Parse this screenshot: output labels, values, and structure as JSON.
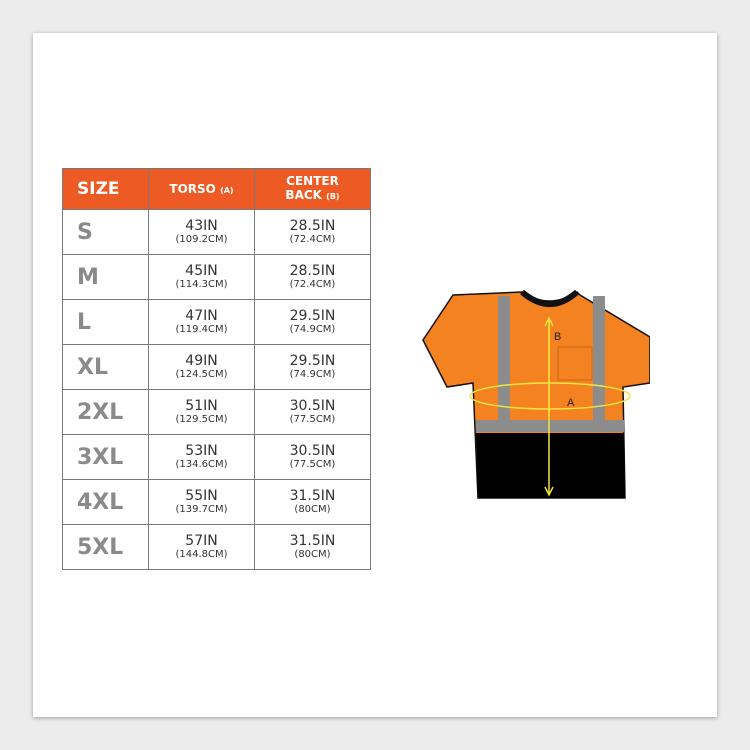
{
  "headers": {
    "size": "SIZE",
    "torso": "TORSO",
    "torso_sub": "(A)",
    "center_back_1": "CENTER",
    "center_back_2": "BACK",
    "center_back_sub": "(B)"
  },
  "rows": [
    {
      "size": "S",
      "torso_in": "43IN",
      "torso_cm": "(109.2CM)",
      "back_in": "28.5IN",
      "back_cm": "(72.4CM)"
    },
    {
      "size": "M",
      "torso_in": "45IN",
      "torso_cm": "(114.3CM)",
      "back_in": "28.5IN",
      "back_cm": "(72.4CM)"
    },
    {
      "size": "L",
      "torso_in": "47IN",
      "torso_cm": "(119.4CM)",
      "back_in": "29.5IN",
      "back_cm": "(74.9CM)"
    },
    {
      "size": "XL",
      "torso_in": "49IN",
      "torso_cm": "(124.5CM)",
      "back_in": "29.5IN",
      "back_cm": "(74.9CM)"
    },
    {
      "size": "2XL",
      "torso_in": "51IN",
      "torso_cm": "(129.5CM)",
      "back_in": "30.5IN",
      "back_cm": "(77.5CM)"
    },
    {
      "size": "3XL",
      "torso_in": "53IN",
      "torso_cm": "(134.6CM)",
      "back_in": "30.5IN",
      "back_cm": "(77.5CM)"
    },
    {
      "size": "4XL",
      "torso_in": "55IN",
      "torso_cm": "(139.7CM)",
      "back_in": "31.5IN",
      "back_cm": "(80CM)"
    },
    {
      "size": "5XL",
      "torso_in": "57IN",
      "torso_cm": "(144.8CM)",
      "back_in": "31.5IN",
      "back_cm": "(80CM)"
    }
  ],
  "diagram": {
    "label_a": "A",
    "label_b": "B"
  },
  "colors": {
    "header": "#ee5a24",
    "shirt": "#f58220",
    "reflective": "#8c8c8c",
    "bottom": "#000000",
    "measure": "#f0e640"
  }
}
